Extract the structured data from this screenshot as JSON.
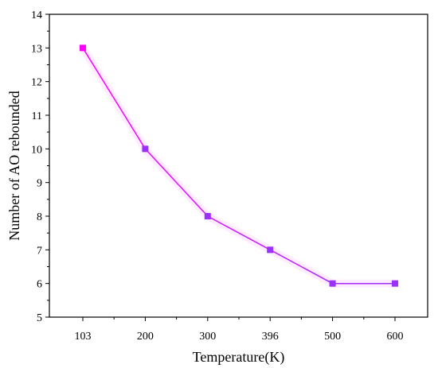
{
  "chart_data": {
    "type": "line",
    "title": "",
    "xlabel": "Temperature(K)",
    "ylabel": "Number of AO rebounded",
    "categories": [
      "103",
      "200",
      "300",
      "396",
      "500",
      "600"
    ],
    "series": [
      {
        "values": [
          13,
          10,
          8,
          7,
          6,
          6
        ]
      }
    ],
    "ylim": [
      5,
      14
    ],
    "yticks": [
      5,
      6,
      7,
      8,
      9,
      10,
      11,
      12,
      13,
      14
    ],
    "grid": false,
    "legend": "none",
    "colors": {
      "line_start": "#ff00ff",
      "line_end": "#9b30ff",
      "marker_start": "#ff00ff",
      "marker_end": "#9b30ff",
      "glow": "#ff66ff"
    }
  }
}
